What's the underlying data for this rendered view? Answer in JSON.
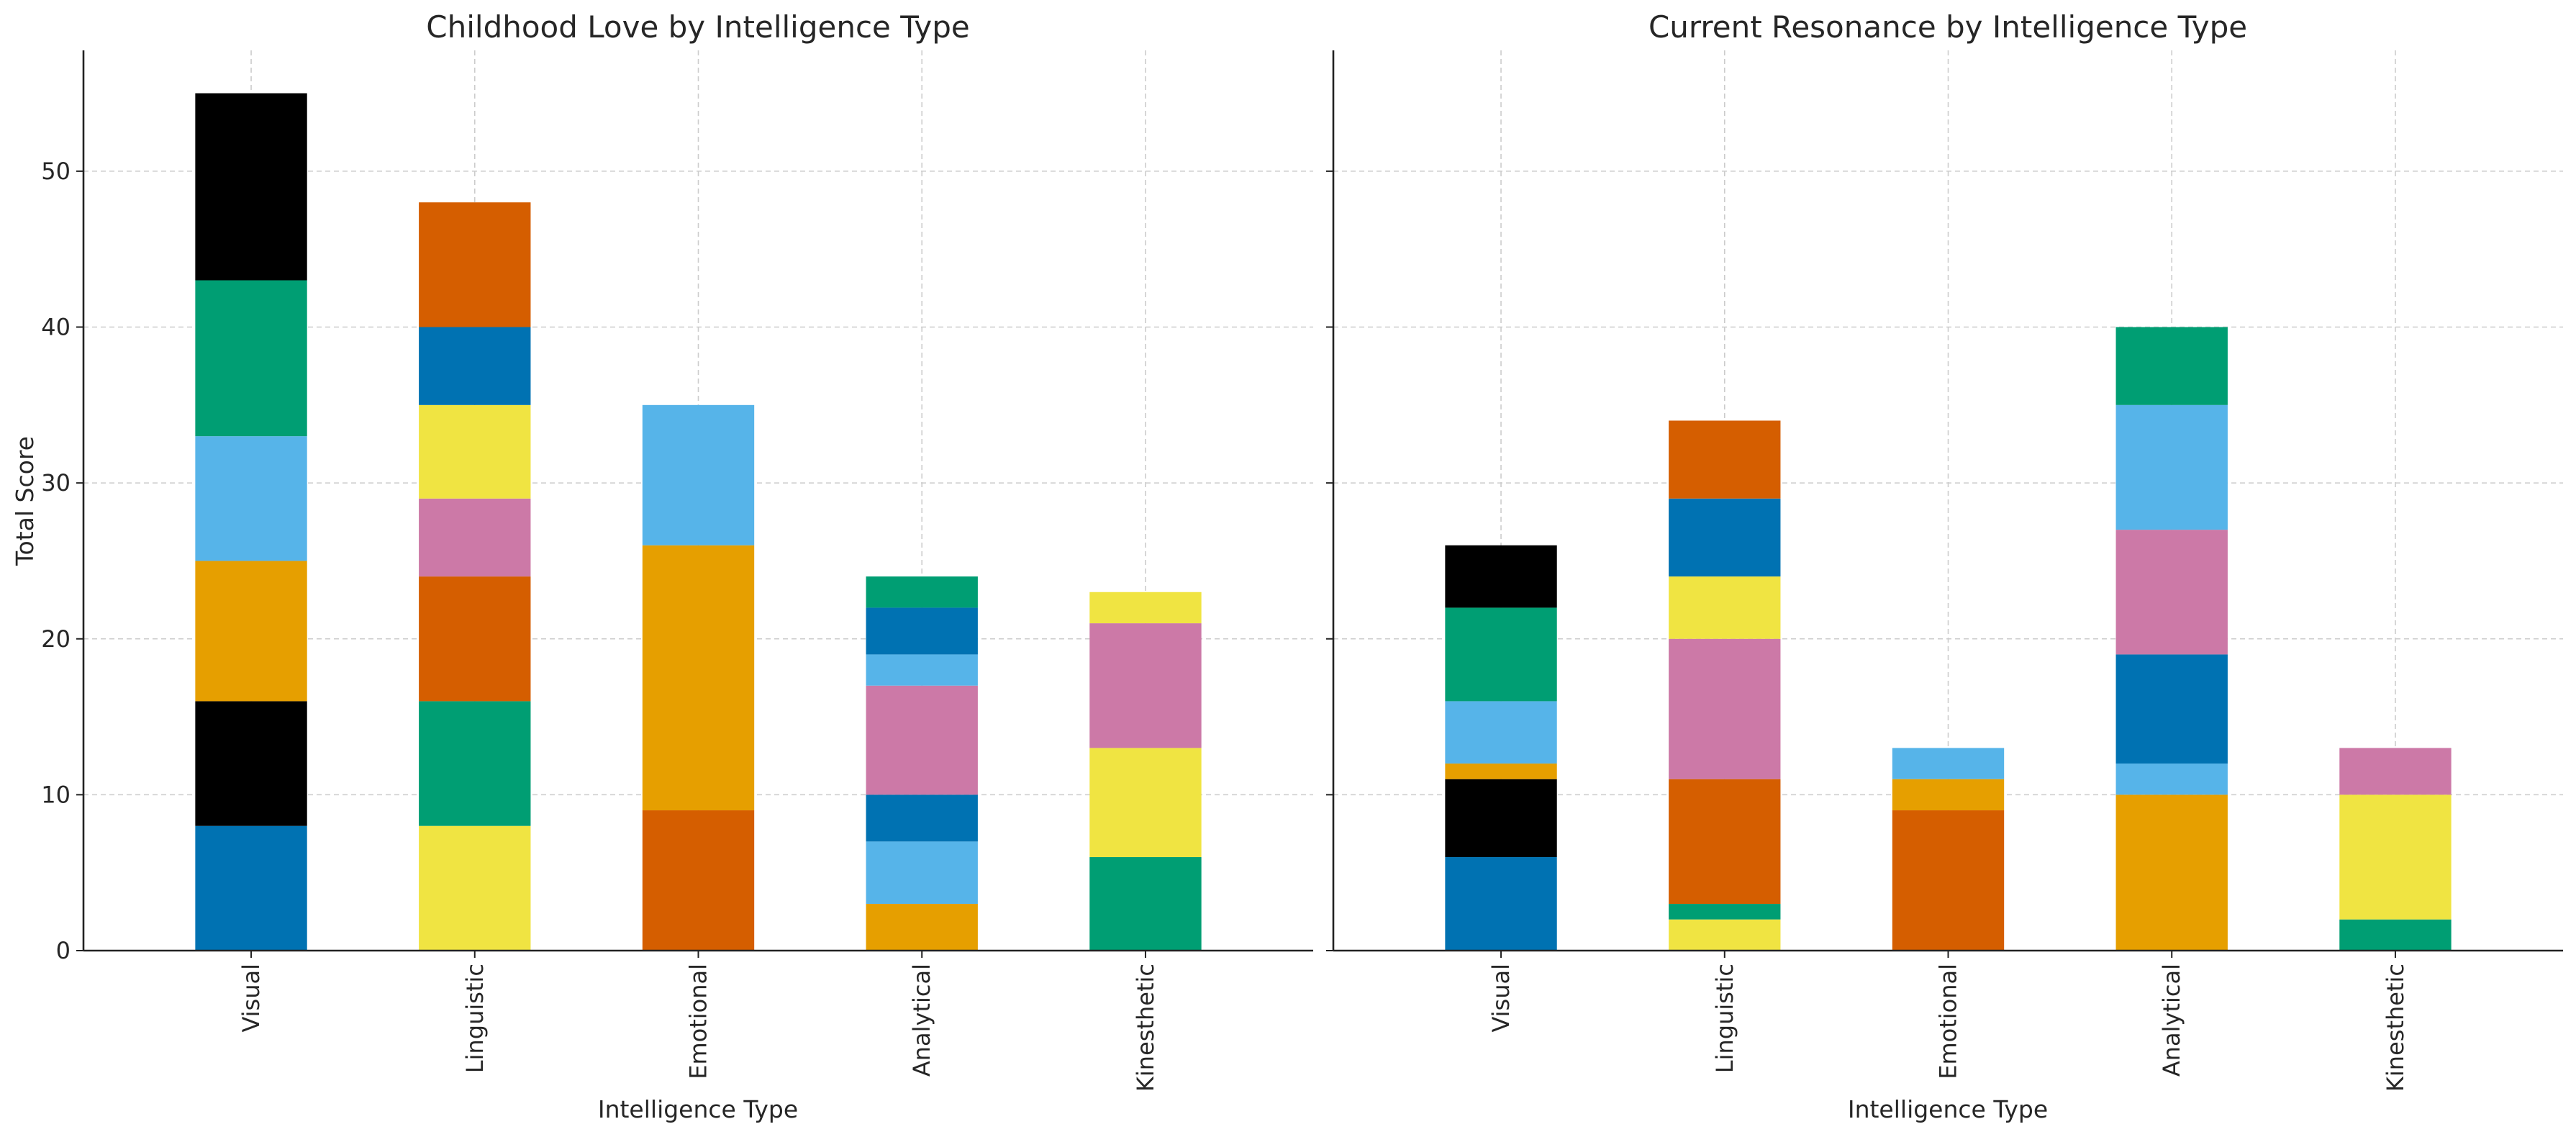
{
  "chart_data": [
    {
      "type": "bar",
      "stacked": true,
      "title": "Childhood Love by Intelligence Type",
      "xlabel": "Intelligence Type",
      "ylabel": "Total Score",
      "categories": [
        "Visual",
        "Linguistic",
        "Emotional",
        "Analytical",
        "Kinesthetic"
      ],
      "ylim": [
        0,
        57.75
      ],
      "yticks": [
        0,
        10,
        20,
        30,
        40,
        50
      ],
      "grid": true,
      "legend": "none",
      "stacks": [
        [
          {
            "value": 8,
            "color": "#0072B2"
          },
          {
            "value": 8,
            "color": "#000000"
          },
          {
            "value": 9,
            "color": "#E69F00"
          },
          {
            "value": 8,
            "color": "#56B4E9"
          },
          {
            "value": 10,
            "color": "#009E73"
          },
          {
            "value": 12,
            "color": "#000000"
          }
        ],
        [
          {
            "value": 8,
            "color": "#F0E442"
          },
          {
            "value": 8,
            "color": "#009E73"
          },
          {
            "value": 8,
            "color": "#D55E00"
          },
          {
            "value": 5,
            "color": "#CC79A7"
          },
          {
            "value": 6,
            "color": "#F0E442"
          },
          {
            "value": 5,
            "color": "#0072B2"
          },
          {
            "value": 8,
            "color": "#D55E00"
          }
        ],
        [
          {
            "value": 9,
            "color": "#D55E00"
          },
          {
            "value": 17,
            "color": "#E69F00"
          },
          {
            "value": 9,
            "color": "#56B4E9"
          }
        ],
        [
          {
            "value": 3,
            "color": "#E69F00"
          },
          {
            "value": 4,
            "color": "#56B4E9"
          },
          {
            "value": 3,
            "color": "#0072B2"
          },
          {
            "value": 7,
            "color": "#CC79A7"
          },
          {
            "value": 2,
            "color": "#56B4E9"
          },
          {
            "value": 3,
            "color": "#0072B2"
          },
          {
            "value": 2,
            "color": "#009E73"
          }
        ],
        [
          {
            "value": 6,
            "color": "#009E73"
          },
          {
            "value": 7,
            "color": "#F0E442"
          },
          {
            "value": 8,
            "color": "#CC79A7"
          },
          {
            "value": 2,
            "color": "#F0E442"
          }
        ]
      ]
    },
    {
      "type": "bar",
      "stacked": true,
      "title": "Current Resonance by Intelligence Type",
      "xlabel": "Intelligence Type",
      "ylabel": "",
      "categories": [
        "Visual",
        "Linguistic",
        "Emotional",
        "Analytical",
        "Kinesthetic"
      ],
      "ylim": [
        0,
        57.75
      ],
      "yticks": [
        0,
        10,
        20,
        30,
        40,
        50
      ],
      "grid": true,
      "legend": "none",
      "stacks": [
        [
          {
            "value": 6,
            "color": "#0072B2"
          },
          {
            "value": 5,
            "color": "#000000"
          },
          {
            "value": 1,
            "color": "#E69F00"
          },
          {
            "value": 4,
            "color": "#56B4E9"
          },
          {
            "value": 6,
            "color": "#009E73"
          },
          {
            "value": 4,
            "color": "#000000"
          }
        ],
        [
          {
            "value": 2,
            "color": "#F0E442"
          },
          {
            "value": 1,
            "color": "#009E73"
          },
          {
            "value": 8,
            "color": "#D55E00"
          },
          {
            "value": 9,
            "color": "#CC79A7"
          },
          {
            "value": 4,
            "color": "#F0E442"
          },
          {
            "value": 5,
            "color": "#0072B2"
          },
          {
            "value": 5,
            "color": "#D55E00"
          }
        ],
        [
          {
            "value": 9,
            "color": "#D55E00"
          },
          {
            "value": 2,
            "color": "#E69F00"
          },
          {
            "value": 2,
            "color": "#56B4E9"
          }
        ],
        [
          {
            "value": 10,
            "color": "#E69F00"
          },
          {
            "value": 2,
            "color": "#56B4E9"
          },
          {
            "value": 7,
            "color": "#0072B2"
          },
          {
            "value": 8,
            "color": "#CC79A7"
          },
          {
            "value": 8,
            "color": "#56B4E9"
          },
          {
            "value": 5,
            "color": "#009E73"
          }
        ],
        [
          {
            "value": 2,
            "color": "#009E73"
          },
          {
            "value": 8,
            "color": "#F0E442"
          },
          {
            "value": 3,
            "color": "#CC79A7"
          }
        ]
      ]
    }
  ]
}
